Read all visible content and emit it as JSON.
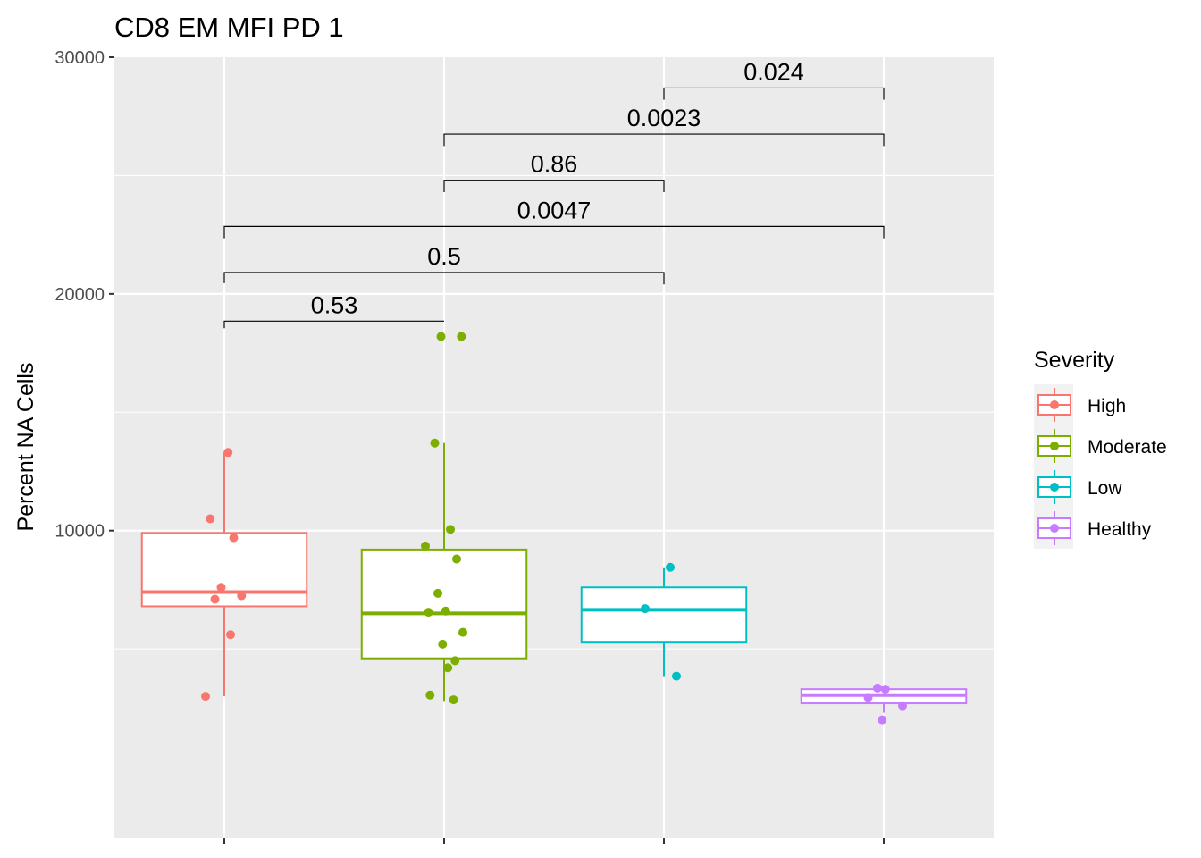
{
  "chart_data": {
    "type": "box",
    "title": "CD8 EM MFI PD 1",
    "xlabel": "",
    "ylabel": "Percent NA Cells",
    "ylim": [
      -3000,
      30000
    ],
    "yticks": [
      10000,
      20000,
      30000
    ],
    "ytick_labels": [
      "10000",
      "20000",
      "30000"
    ],
    "grid": true,
    "legend": {
      "title": "Severity",
      "position": "right"
    },
    "groups": [
      {
        "name": "High",
        "color": "#F8766D",
        "box": {
          "q1": 6800,
          "median": 7400,
          "q3": 9900,
          "lower": 3000,
          "upper": 13300
        },
        "points": [
          13300,
          10500,
          9700,
          7600,
          7250,
          7100,
          5600,
          3000
        ]
      },
      {
        "name": "Moderate",
        "color": "#7CAE00",
        "box": {
          "q1": 4600,
          "median": 6500,
          "q3": 9200,
          "lower": 2800,
          "upper": 13700
        },
        "points": [
          18200,
          18200,
          13700,
          10050,
          9350,
          8800,
          7350,
          6600,
          6550,
          5700,
          5200,
          4500,
          4200,
          3050,
          2850
        ]
      },
      {
        "name": "Low",
        "color": "#00BFC4",
        "box": {
          "q1": 5300,
          "median": 6650,
          "q3": 7600,
          "lower": 3850,
          "upper": 8450
        },
        "points": [
          8450,
          6700,
          3850
        ]
      },
      {
        "name": "Healthy",
        "color": "#C77CFF",
        "box": {
          "q1": 2700,
          "median": 3050,
          "q3": 3300,
          "lower": 2300,
          "upper": 3350
        },
        "points": [
          3350,
          3300,
          2950,
          2600,
          2000
        ]
      }
    ],
    "comparisons": [
      {
        "from": "High",
        "to": "Moderate",
        "label": "0.53",
        "y": 18850,
        "tip_from": 18550,
        "tip_to": 18850
      },
      {
        "from": "High",
        "to": "Low",
        "label": "0.5",
        "y": 20900,
        "tip_from": 20450,
        "tip_to": 20400
      },
      {
        "from": "High",
        "to": "Healthy",
        "label": "0.0047",
        "y": 22850,
        "tip_from": 22350,
        "tip_to": 22350
      },
      {
        "from": "Moderate",
        "to": "Low",
        "label": "0.86",
        "y": 24800,
        "tip_from": 24300,
        "tip_to": 24300
      },
      {
        "from": "Moderate",
        "to": "Healthy",
        "label": "0.0023",
        "y": 26750,
        "tip_from": 26250,
        "tip_to": 26250
      },
      {
        "from": "Low",
        "to": "Healthy",
        "label": "0.024",
        "y": 28700,
        "tip_from": 28200,
        "tip_to": 28200
      }
    ]
  }
}
